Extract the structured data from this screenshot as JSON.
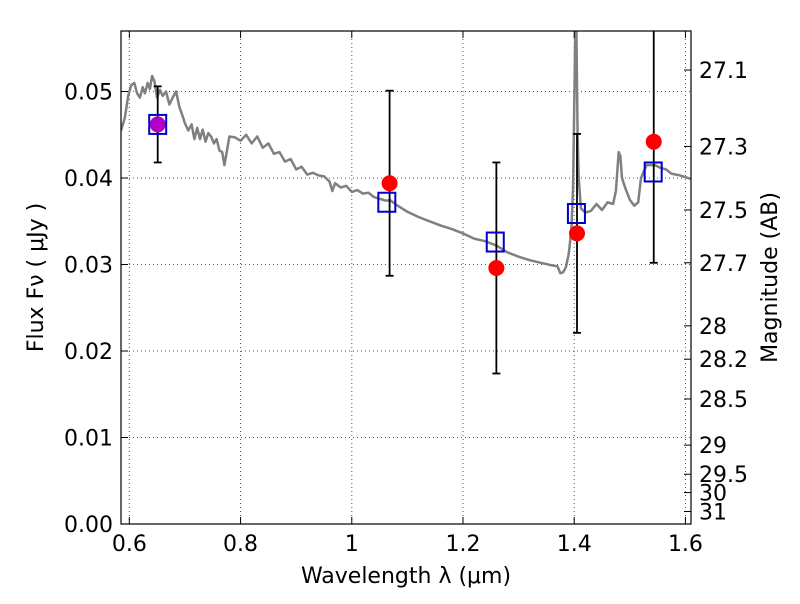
{
  "chart_data": {
    "type": "scatter",
    "xlabel": "Wavelength  λ (μm)",
    "ylabel_left": "Flux  Fν  ( μJy )",
    "ylabel_right": "Magnitude (AB)",
    "xlim": [
      0.585,
      1.61
    ],
    "ylim": [
      0.0,
      0.057
    ],
    "grid": true,
    "x_ticks": [
      {
        "value": 0.6,
        "label": "0.6"
      },
      {
        "value": 0.8,
        "label": "0.8"
      },
      {
        "value": 1.0,
        "label": "1"
      },
      {
        "value": 1.2,
        "label": "1.2"
      },
      {
        "value": 1.4,
        "label": "1.4"
      },
      {
        "value": 1.6,
        "label": "1.6"
      }
    ],
    "y_ticks": [
      {
        "value": 0.0,
        "label": "0.00"
      },
      {
        "value": 0.01,
        "label": "0.01"
      },
      {
        "value": 0.02,
        "label": "0.02"
      },
      {
        "value": 0.03,
        "label": "0.03"
      },
      {
        "value": 0.04,
        "label": "0.04"
      },
      {
        "value": 0.05,
        "label": "0.05"
      }
    ],
    "mag_ticks": [
      {
        "value": 27.1,
        "label": "27.1"
      },
      {
        "value": 27.3,
        "label": "27.3"
      },
      {
        "value": 27.5,
        "label": "27.5"
      },
      {
        "value": 27.7,
        "label": "27.7"
      },
      {
        "value": 28.0,
        "label": "28"
      },
      {
        "value": 28.2,
        "label": "28.2"
      },
      {
        "value": 28.5,
        "label": "28.5"
      },
      {
        "value": 29.0,
        "label": "29"
      },
      {
        "value": 29.5,
        "label": "29.5"
      },
      {
        "value": 30.0,
        "label": "30"
      },
      {
        "value": 31.0,
        "label": "31"
      }
    ],
    "observed": [
      {
        "x": 0.651,
        "y": 0.0462,
        "err": 0.0044
      },
      {
        "x": 1.068,
        "y": 0.0394,
        "err": 0.0107
      },
      {
        "x": 1.26,
        "y": 0.0296,
        "err": 0.0122
      },
      {
        "x": 1.405,
        "y": 0.0336,
        "err": 0.0115
      },
      {
        "x": 1.543,
        "y": 0.0442,
        "err": 0.014
      }
    ],
    "model_bands": [
      {
        "x": 0.651,
        "y": 0.0462
      },
      {
        "x": 1.063,
        "y": 0.0372
      },
      {
        "x": 1.258,
        "y": 0.0326
      },
      {
        "x": 1.404,
        "y": 0.0359
      },
      {
        "x": 1.542,
        "y": 0.0407
      }
    ],
    "model_spectrum": [
      [
        0.585,
        0.0455
      ],
      [
        0.592,
        0.047
      ],
      [
        0.598,
        0.0495
      ],
      [
        0.603,
        0.0507
      ],
      [
        0.609,
        0.051
      ],
      [
        0.614,
        0.0498
      ],
      [
        0.619,
        0.0493
      ],
      [
        0.624,
        0.0505
      ],
      [
        0.628,
        0.0498
      ],
      [
        0.633,
        0.051
      ],
      [
        0.637,
        0.0503
      ],
      [
        0.641,
        0.0518
      ],
      [
        0.645,
        0.0512
      ],
      [
        0.65,
        0.0493
      ],
      [
        0.655,
        0.0502
      ],
      [
        0.66,
        0.0495
      ],
      [
        0.666,
        0.05
      ],
      [
        0.672,
        0.0485
      ],
      [
        0.678,
        0.0493
      ],
      [
        0.684,
        0.05
      ],
      [
        0.69,
        0.0482
      ],
      [
        0.695,
        0.0473
      ],
      [
        0.7,
        0.0463
      ],
      [
        0.706,
        0.0455
      ],
      [
        0.712,
        0.0462
      ],
      [
        0.717,
        0.0445
      ],
      [
        0.722,
        0.0458
      ],
      [
        0.727,
        0.0445
      ],
      [
        0.732,
        0.0456
      ],
      [
        0.737,
        0.0442
      ],
      [
        0.742,
        0.0452
      ],
      [
        0.747,
        0.0448
      ],
      [
        0.752,
        0.044
      ],
      [
        0.757,
        0.0445
      ],
      [
        0.762,
        0.0432
      ],
      [
        0.767,
        0.043
      ],
      [
        0.771,
        0.0415
      ],
      [
        0.775,
        0.043
      ],
      [
        0.78,
        0.0448
      ],
      [
        0.79,
        0.0447
      ],
      [
        0.8,
        0.0443
      ],
      [
        0.81,
        0.045
      ],
      [
        0.82,
        0.044
      ],
      [
        0.83,
        0.0448
      ],
      [
        0.84,
        0.0435
      ],
      [
        0.85,
        0.044
      ],
      [
        0.86,
        0.0428
      ],
      [
        0.87,
        0.043
      ],
      [
        0.88,
        0.0419
      ],
      [
        0.89,
        0.0422
      ],
      [
        0.9,
        0.041
      ],
      [
        0.91,
        0.0413
      ],
      [
        0.92,
        0.0404
      ],
      [
        0.93,
        0.0406
      ],
      [
        0.94,
        0.0403
      ],
      [
        0.95,
        0.0402
      ],
      [
        0.96,
        0.0396
      ],
      [
        0.965,
        0.0385
      ],
      [
        0.97,
        0.0394
      ],
      [
        0.98,
        0.0389
      ],
      [
        0.99,
        0.0391
      ],
      [
        1.0,
        0.0384
      ],
      [
        1.01,
        0.0386
      ],
      [
        1.02,
        0.0382
      ],
      [
        1.03,
        0.0383
      ],
      [
        1.04,
        0.0378
      ],
      [
        1.05,
        0.0376
      ],
      [
        1.06,
        0.0374
      ],
      [
        1.07,
        0.0374
      ],
      [
        1.08,
        0.0369
      ],
      [
        1.1,
        0.0361
      ],
      [
        1.12,
        0.0355
      ],
      [
        1.14,
        0.035
      ],
      [
        1.16,
        0.0345
      ],
      [
        1.18,
        0.0341
      ],
      [
        1.2,
        0.0336
      ],
      [
        1.22,
        0.033
      ],
      [
        1.24,
        0.0327
      ],
      [
        1.26,
        0.0322
      ],
      [
        1.28,
        0.0314
      ],
      [
        1.3,
        0.0309
      ],
      [
        1.32,
        0.0305
      ],
      [
        1.34,
        0.0302
      ],
      [
        1.36,
        0.0299
      ],
      [
        1.37,
        0.0298
      ],
      [
        1.375,
        0.029
      ],
      [
        1.38,
        0.0291
      ],
      [
        1.385,
        0.0297
      ],
      [
        1.39,
        0.0312
      ],
      [
        1.395,
        0.034
      ],
      [
        1.398,
        0.039
      ],
      [
        1.4,
        0.048
      ],
      [
        1.402,
        0.057
      ],
      [
        1.404,
        0.057
      ],
      [
        1.406,
        0.045
      ],
      [
        1.408,
        0.04
      ],
      [
        1.412,
        0.0365
      ],
      [
        1.42,
        0.036
      ],
      [
        1.43,
        0.0362
      ],
      [
        1.44,
        0.037
      ],
      [
        1.45,
        0.0363
      ],
      [
        1.46,
        0.0372
      ],
      [
        1.47,
        0.037
      ],
      [
        1.475,
        0.0385
      ],
      [
        1.48,
        0.043
      ],
      [
        1.483,
        0.0425
      ],
      [
        1.486,
        0.04
      ],
      [
        1.492,
        0.0388
      ],
      [
        1.5,
        0.0375
      ],
      [
        1.508,
        0.0368
      ],
      [
        1.515,
        0.0372
      ],
      [
        1.52,
        0.04
      ],
      [
        1.53,
        0.0415
      ],
      [
        1.545,
        0.0415
      ],
      [
        1.555,
        0.0412
      ],
      [
        1.565,
        0.041
      ],
      [
        1.575,
        0.0405
      ],
      [
        1.59,
        0.0403
      ],
      [
        1.61,
        0.0399
      ]
    ],
    "colors": {
      "observed": "#ff0000",
      "observed_overlap": "#b000c8",
      "model_bands": "#0000cc",
      "spectrum": "#808080",
      "errorbar": "#000000",
      "grid": "#555555"
    }
  }
}
